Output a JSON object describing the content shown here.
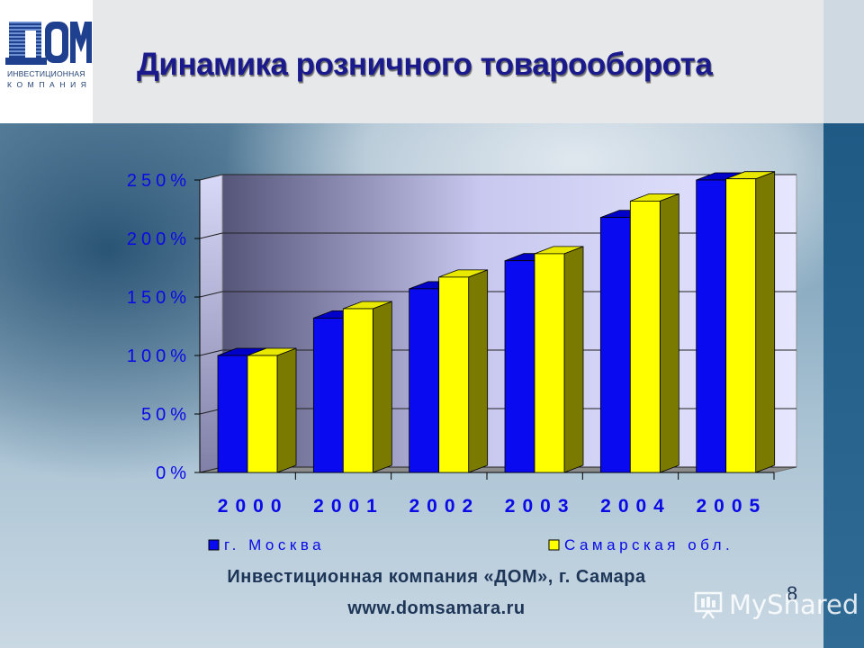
{
  "slide": {
    "title": "Динамика розничного товарооборота",
    "logo_main": "ДОМ",
    "logo_line1": "ИНВЕСТИЦИОННАЯ",
    "logo_line2": "КОМПАНИЯ",
    "footer_company": "Инвестиционная компания «ДОМ», г. Самара",
    "footer_url": "www.domsamara.ru",
    "page_number": "8",
    "watermark": "MyShared"
  },
  "colors": {
    "moscow": "#0a0af0",
    "samara": "#ffff00",
    "title": "#1a1a8c"
  },
  "chart_data": {
    "type": "bar",
    "categories": [
      "2000",
      "2001",
      "2002",
      "2003",
      "2004",
      "2005"
    ],
    "series": [
      {
        "name": "г. Москва",
        "values": [
          100,
          132,
          157,
          181,
          218,
          250
        ]
      },
      {
        "name": "Самарская обл.",
        "values": [
          100,
          140,
          167,
          187,
          232,
          251
        ]
      }
    ],
    "y_ticks": [
      "0%",
      "50%",
      "100%",
      "150%",
      "200%",
      "250%"
    ],
    "ylim": [
      0,
      250
    ],
    "grid": true,
    "legend_position": "bottom",
    "three_d": true
  }
}
